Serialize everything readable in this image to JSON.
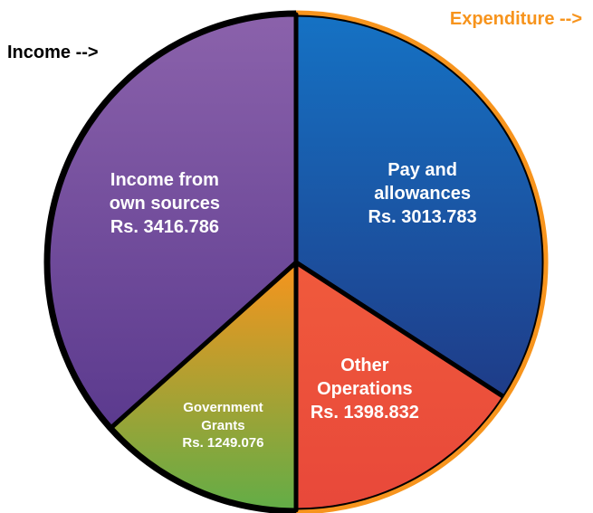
{
  "chart_data": {
    "type": "pie",
    "series": [
      {
        "name": "Expenditure -->",
        "color": "#f7941d",
        "categories": [
          "Pay and allowances",
          "Other Operations"
        ],
        "values": [
          3013.783,
          1398.832
        ],
        "value_labels": [
          "Rs. 3013.783",
          "Rs. 1398.832"
        ],
        "colors": [
          [
            "#1572c4",
            "#1f3c88"
          ],
          [
            "#f05a3c",
            "#e8483a"
          ]
        ]
      },
      {
        "name": "Income -->",
        "color": "#000000",
        "categories": [
          "Government Grants",
          "Income from own sources"
        ],
        "values": [
          1249.076,
          3416.786
        ],
        "value_labels": [
          "Rs. 1249.076",
          "Rs. 3416.786"
        ],
        "colors": [
          [
            "#f7941d",
            "#62ad47"
          ],
          [
            "#8b62ab",
            "#5b3a8e"
          ]
        ]
      }
    ]
  }
}
